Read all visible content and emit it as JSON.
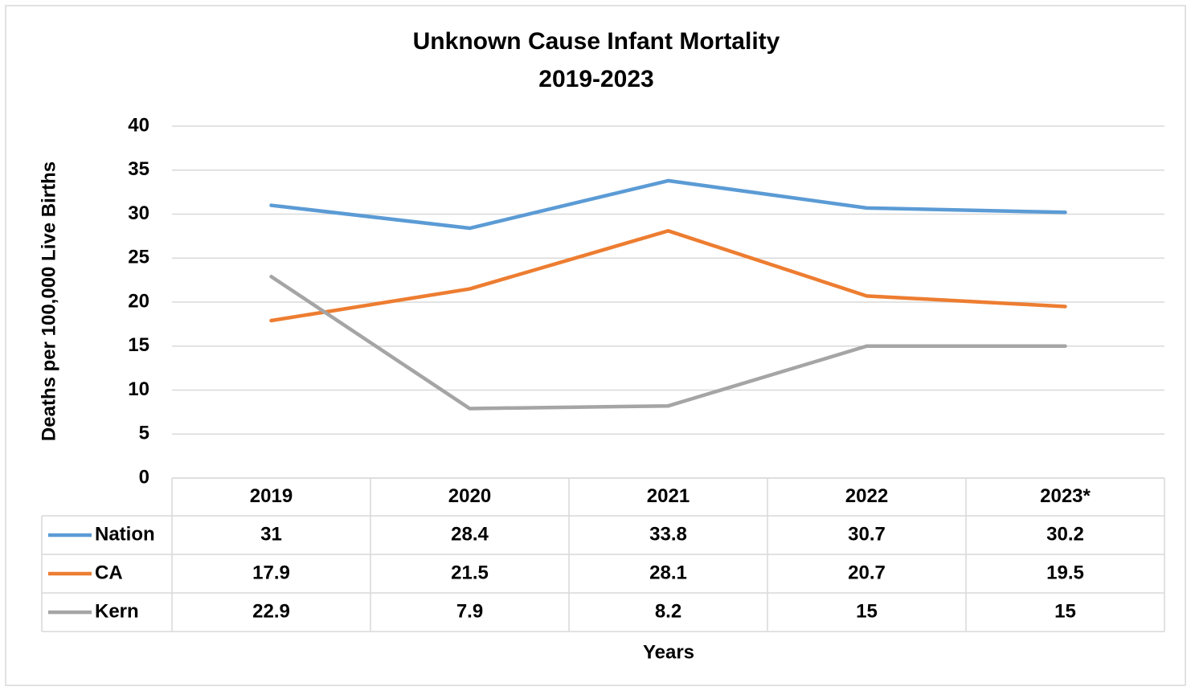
{
  "chart_data": {
    "type": "line",
    "title": "Unknown Cause Infant Mortality",
    "subtitle": "2019-2023",
    "y_label": "Deaths per 100,000 Live Births",
    "x_label": "Years",
    "categories": [
      "2019",
      "2020",
      "2021",
      "2022",
      "2023*"
    ],
    "series": [
      {
        "name": "Nation",
        "color": "#5b9bd5",
        "values": [
          31,
          28.4,
          33.8,
          30.7,
          30.2
        ]
      },
      {
        "name": "CA",
        "color": "#ed7d31",
        "values": [
          17.9,
          21.5,
          28.1,
          20.7,
          19.5
        ]
      },
      {
        "name": "Kern",
        "color": "#a5a5a5",
        "values": [
          22.9,
          7.9,
          8.2,
          15,
          15
        ]
      }
    ],
    "ylim": [
      0,
      40
    ],
    "yticks": [
      0,
      5,
      10,
      15,
      20,
      25,
      30,
      35,
      40
    ],
    "grid": true,
    "data_table": true
  }
}
